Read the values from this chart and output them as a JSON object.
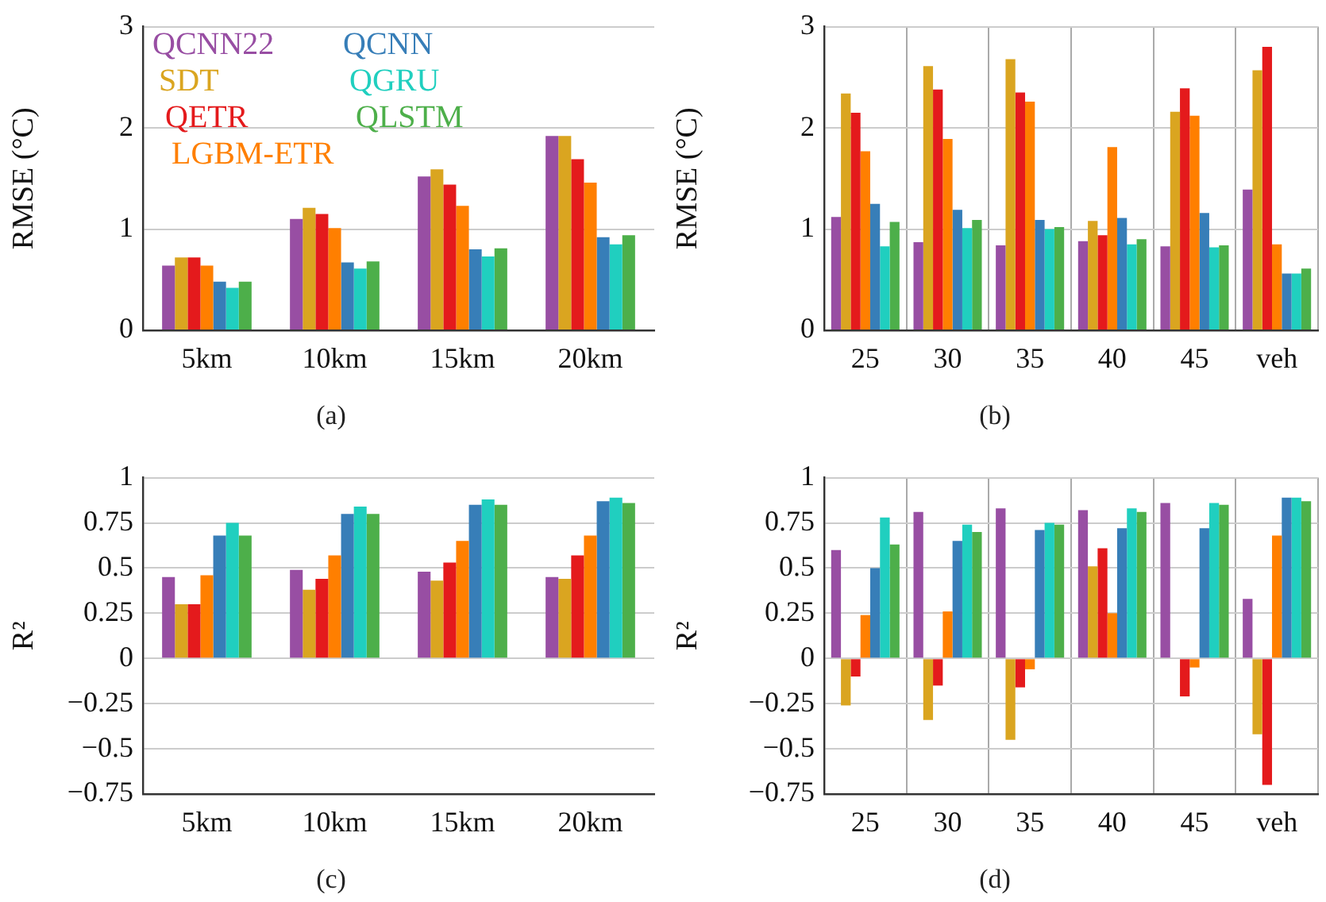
{
  "chart_data": [
    {
      "type": "bar",
      "ylabel": "RMSE (°C)",
      "categories": [
        "5km",
        "10km",
        "15km",
        "20km"
      ],
      "ylim": [
        0,
        3
      ],
      "yticks": [
        0,
        1,
        2,
        3
      ],
      "grid": "y",
      "legend": "top left",
      "annotations": [
        "(a)"
      ],
      "series": [
        {
          "name": "QCNN22",
          "color": "#984ea3",
          "values": [
            0.64,
            1.1,
            1.52,
            1.92
          ]
        },
        {
          "name": "SDT",
          "color": "#daa520",
          "values": [
            0.72,
            1.21,
            1.59,
            1.92
          ]
        },
        {
          "name": "QETR",
          "color": "#e41a1c",
          "values": [
            0.72,
            1.15,
            1.44,
            1.69
          ]
        },
        {
          "name": "LGBM-ETR",
          "color": "#ff7f00",
          "values": [
            0.64,
            1.01,
            1.23,
            1.46
          ]
        },
        {
          "name": "QCNN",
          "color": "#377eb8",
          "values": [
            0.48,
            0.67,
            0.8,
            0.92
          ]
        },
        {
          "name": "QGRU",
          "color": "#20cfbf",
          "values": [
            0.42,
            0.61,
            0.73,
            0.85
          ]
        },
        {
          "name": "QLSTM",
          "color": "#4daf4a",
          "values": [
            0.48,
            0.68,
            0.81,
            0.94
          ]
        }
      ]
    },
    {
      "type": "bar",
      "ylabel": "RMSE (°C)",
      "categories": [
        "25",
        "30",
        "35",
        "40",
        "45",
        "veh"
      ],
      "ylim": [
        0,
        3
      ],
      "yticks": [
        0,
        1,
        2,
        3
      ],
      "grid": true,
      "annotations": [
        "(b)"
      ],
      "series": [
        {
          "color": "#984ea3",
          "values": [
            1.12,
            0.87,
            0.84,
            0.88,
            0.83,
            1.39
          ]
        },
        {
          "color": "#daa520",
          "values": [
            2.34,
            2.61,
            2.68,
            1.08,
            2.16,
            2.57
          ]
        },
        {
          "color": "#e41a1c",
          "values": [
            2.15,
            2.38,
            2.35,
            0.94,
            2.39,
            2.8
          ]
        },
        {
          "color": "#ff7f00",
          "values": [
            1.77,
            1.89,
            2.26,
            1.81,
            2.12,
            0.85
          ]
        },
        {
          "color": "#377eb8",
          "values": [
            1.25,
            1.19,
            1.09,
            1.11,
            1.16,
            0.56
          ]
        },
        {
          "color": "#20cfbf",
          "values": [
            0.83,
            1.01,
            1.0,
            0.85,
            0.82,
            0.56
          ]
        },
        {
          "color": "#4daf4a",
          "values": [
            1.07,
            1.09,
            1.02,
            0.9,
            0.84,
            0.61
          ]
        }
      ]
    },
    {
      "type": "bar",
      "ylabel": "R²",
      "categories": [
        "5km",
        "10km",
        "15km",
        "20km"
      ],
      "ylim": [
        -0.75,
        1
      ],
      "yticks": [
        {
          "value": -0.75,
          "label": "−0.75"
        },
        {
          "value": -0.5,
          "label": "−0.5"
        },
        {
          "value": -0.25,
          "label": "−0.25"
        },
        0,
        0.25,
        0.5,
        0.75,
        1
      ],
      "grid": "y",
      "annotations": [
        "(c)"
      ],
      "series": [
        {
          "color": "#984ea3",
          "values": [
            0.45,
            0.49,
            0.48,
            0.45
          ]
        },
        {
          "color": "#daa520",
          "values": [
            0.3,
            0.38,
            0.43,
            0.44
          ]
        },
        {
          "color": "#e41a1c",
          "values": [
            0.3,
            0.44,
            0.53,
            0.57
          ]
        },
        {
          "color": "#ff7f00",
          "values": [
            0.46,
            0.57,
            0.65,
            0.68
          ]
        },
        {
          "color": "#377eb8",
          "values": [
            0.68,
            0.8,
            0.85,
            0.87
          ]
        },
        {
          "color": "#20cfbf",
          "values": [
            0.75,
            0.84,
            0.88,
            0.89
          ]
        },
        {
          "color": "#4daf4a",
          "values": [
            0.68,
            0.8,
            0.85,
            0.86
          ]
        }
      ]
    },
    {
      "type": "bar",
      "ylabel": "R²",
      "categories": [
        "25",
        "30",
        "35",
        "40",
        "45",
        "veh"
      ],
      "ylim": [
        -0.75,
        1
      ],
      "yticks": [
        {
          "value": -0.75,
          "label": "−0.75"
        },
        {
          "value": -0.5,
          "label": "−0.5"
        },
        {
          "value": -0.25,
          "label": "−0.25"
        },
        0,
        0.25,
        0.5,
        0.75,
        1
      ],
      "grid": true,
      "annotations": [
        "(d)"
      ],
      "series": [
        {
          "color": "#984ea3",
          "values": [
            0.6,
            0.81,
            0.83,
            0.82,
            0.86,
            0.33
          ]
        },
        {
          "color": "#daa520",
          "values": [
            -0.26,
            -0.34,
            -0.45,
            0.51,
            null,
            -0.42
          ]
        },
        {
          "color": "#e41a1c",
          "values": [
            -0.1,
            -0.15,
            -0.16,
            0.61,
            -0.21,
            -0.7
          ]
        },
        {
          "color": "#ff7f00",
          "values": [
            0.24,
            0.26,
            -0.06,
            0.25,
            -0.05,
            0.68
          ]
        },
        {
          "color": "#377eb8",
          "values": [
            0.5,
            0.65,
            0.71,
            0.72,
            0.72,
            0.89
          ]
        },
        {
          "color": "#20cfbf",
          "values": [
            0.78,
            0.74,
            0.75,
            0.83,
            0.86,
            0.89
          ]
        },
        {
          "color": "#4daf4a",
          "values": [
            0.63,
            0.7,
            0.74,
            0.81,
            0.85,
            0.87
          ]
        }
      ]
    }
  ]
}
